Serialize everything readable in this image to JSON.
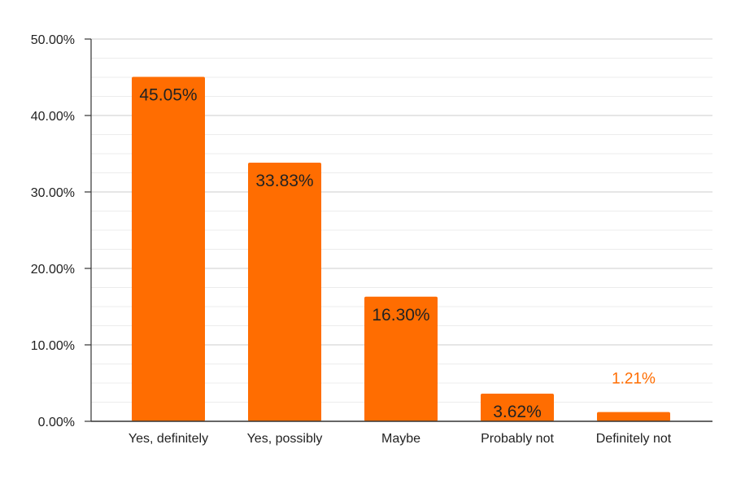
{
  "chart_data": {
    "type": "bar",
    "title": "",
    "xlabel": "",
    "ylabel": "",
    "categories": [
      "Yes, definitely",
      "Yes, possibly",
      "Maybe",
      "Probably not",
      "Definitely not"
    ],
    "values": [
      45.05,
      33.83,
      16.3,
      3.62,
      1.21
    ],
    "value_labels": [
      "45.05%",
      "33.83%",
      "16.30%",
      "3.62%",
      "1.21%"
    ],
    "ylim": [
      0,
      50
    ],
    "yticks": [
      0,
      10,
      20,
      30,
      40,
      50
    ],
    "ytick_labels": [
      "0.00%",
      "10.00%",
      "20.00%",
      "30.00%",
      "40.00%",
      "50.00%"
    ],
    "minor_gridlines_per_major": 3,
    "grid": true,
    "legend": "none",
    "colors": {
      "bar": "#FF6D01",
      "outside_label": "#FF6D01",
      "major_grid": "#cccccc",
      "minor_grid": "#ececec",
      "axis": "#333333"
    }
  }
}
